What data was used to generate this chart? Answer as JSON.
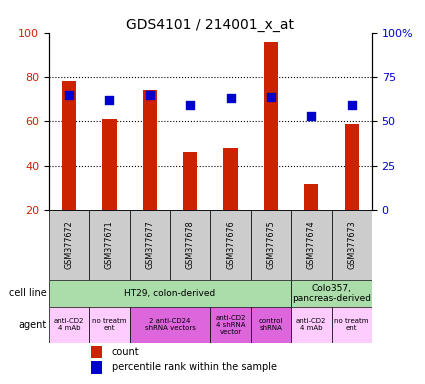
{
  "title": "GDS4101 / 214001_x_at",
  "samples": [
    "GSM377672",
    "GSM377671",
    "GSM377677",
    "GSM377678",
    "GSM377676",
    "GSM377675",
    "GSM377674",
    "GSM377673"
  ],
  "counts": [
    78,
    61,
    74,
    46,
    48,
    96,
    32,
    59
  ],
  "percentile_ranks": [
    65,
    62,
    65,
    59,
    63,
    64,
    53,
    59
  ],
  "ylim_left": [
    20,
    100
  ],
  "ylim_right": [
    0,
    100
  ],
  "yticks_left": [
    20,
    40,
    60,
    80,
    100
  ],
  "yticks_right": [
    0,
    25,
    50,
    75,
    100
  ],
  "yticklabels_right": [
    "0",
    "25",
    "50",
    "75",
    "100%"
  ],
  "bar_color": "#cc2200",
  "dot_color": "#0000cc",
  "cell_lines": [
    {
      "label": "HT29, colon-derived",
      "span": [
        0,
        6
      ],
      "color": "#aaddaa"
    },
    {
      "label": "Colo357,\npancreas-derived",
      "span": [
        6,
        8
      ],
      "color": "#aaddaa"
    }
  ],
  "agents": [
    {
      "label": "anti-CD2\n4 mAb",
      "span": [
        0,
        1
      ],
      "color": "#ffccff"
    },
    {
      "label": "no treatm\nent",
      "span": [
        1,
        2
      ],
      "color": "#ffccff"
    },
    {
      "label": "2 anti-CD24\nshRNA vectors",
      "span": [
        2,
        4
      ],
      "color": "#dd66dd"
    },
    {
      "label": "anti-CD2\n4 shRNA\nvector",
      "span": [
        4,
        5
      ],
      "color": "#dd66dd"
    },
    {
      "label": "control\nshRNA",
      "span": [
        5,
        6
      ],
      "color": "#dd66dd"
    },
    {
      "label": "anti-CD2\n4 mAb",
      "span": [
        6,
        7
      ],
      "color": "#ffccff"
    },
    {
      "label": "no treatm\nent",
      "span": [
        7,
        8
      ],
      "color": "#ffccff"
    }
  ],
  "legend_labels": [
    "count",
    "percentile rank within the sample"
  ],
  "legend_colors": [
    "#cc2200",
    "#0000cc"
  ],
  "dot_size": 30,
  "bar_width": 0.35,
  "sample_box_color": "#cccccc",
  "gridline_yticks": [
    40,
    60,
    80
  ],
  "cell_line_label": "cell line",
  "agent_label": "agent"
}
